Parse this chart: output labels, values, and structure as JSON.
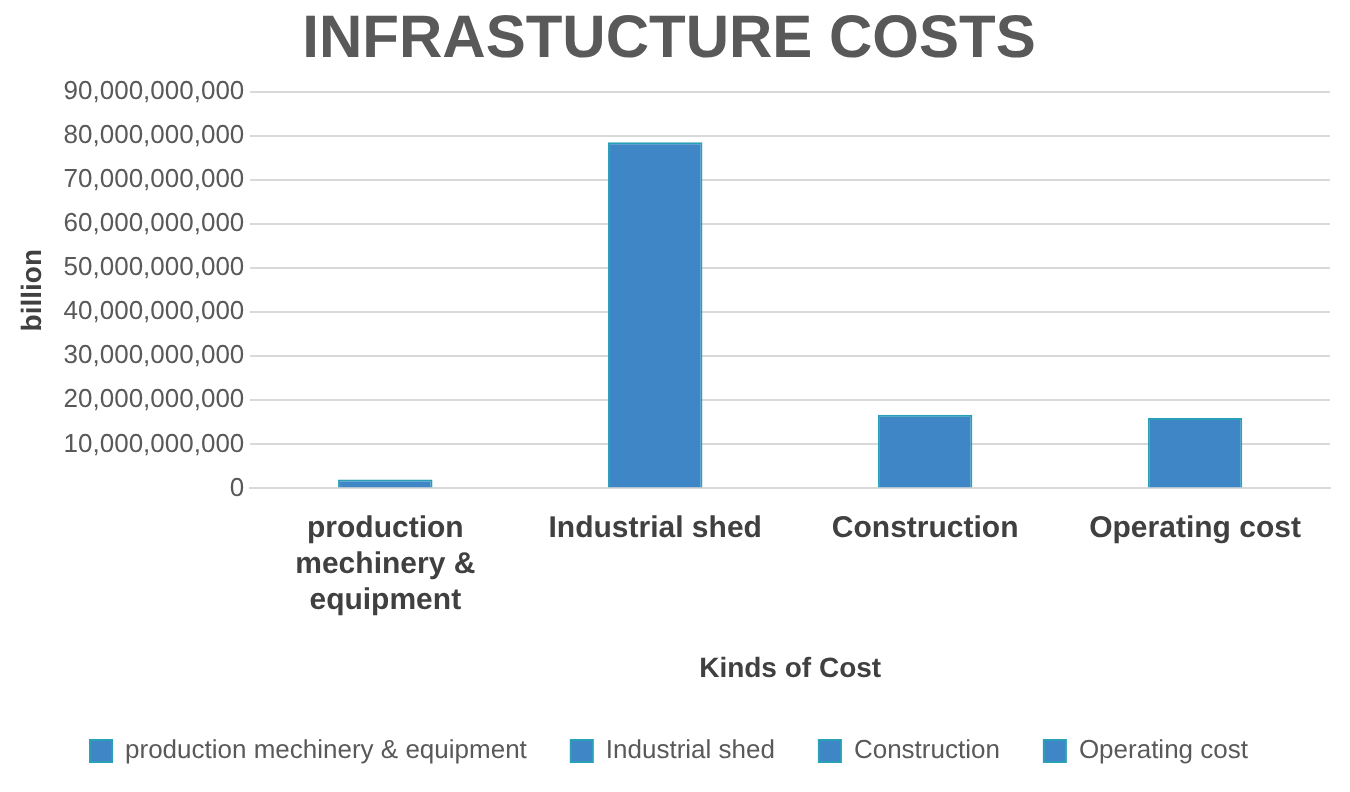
{
  "chart_data": {
    "type": "bar",
    "title": "INFRASTUCTURE COSTS",
    "xlabel": "Kinds of Cost",
    "ylabel": "billion",
    "categories": [
      "production mechinery & equipment",
      "Industrial shed",
      "Construction",
      "Operating cost"
    ],
    "series": [
      {
        "name": "production mechinery & equipment",
        "color": "#3f86c6",
        "values": [
          2000000000,
          null,
          null,
          null
        ]
      },
      {
        "name": "Industrial shed",
        "color": "#3f86c6",
        "values": [
          null,
          78600000000,
          null,
          null
        ]
      },
      {
        "name": "Construction",
        "color": "#3f86c6",
        "values": [
          null,
          null,
          16700000000,
          null
        ]
      },
      {
        "name": "Operating cost",
        "color": "#3f86c6",
        "values": [
          null,
          null,
          null,
          16000000000
        ]
      }
    ],
    "ylim": [
      0,
      90000000000
    ],
    "yticks": [
      {
        "value": 0,
        "label": "0"
      },
      {
        "value": 10000000000,
        "label": "10,000,000,000"
      },
      {
        "value": 20000000000,
        "label": "20,000,000,000"
      },
      {
        "value": 30000000000,
        "label": "30,000,000,000"
      },
      {
        "value": 40000000000,
        "label": "40,000,000,000"
      },
      {
        "value": 50000000000,
        "label": "50,000,000,000"
      },
      {
        "value": 60000000000,
        "label": "60,000,000,000"
      },
      {
        "value": 70000000000,
        "label": "70,000,000,000"
      },
      {
        "value": 80000000000,
        "label": "80,000,000,000"
      },
      {
        "value": 90000000000,
        "label": "90,000,000,000"
      }
    ],
    "grid": "y",
    "legend": "bottom"
  }
}
